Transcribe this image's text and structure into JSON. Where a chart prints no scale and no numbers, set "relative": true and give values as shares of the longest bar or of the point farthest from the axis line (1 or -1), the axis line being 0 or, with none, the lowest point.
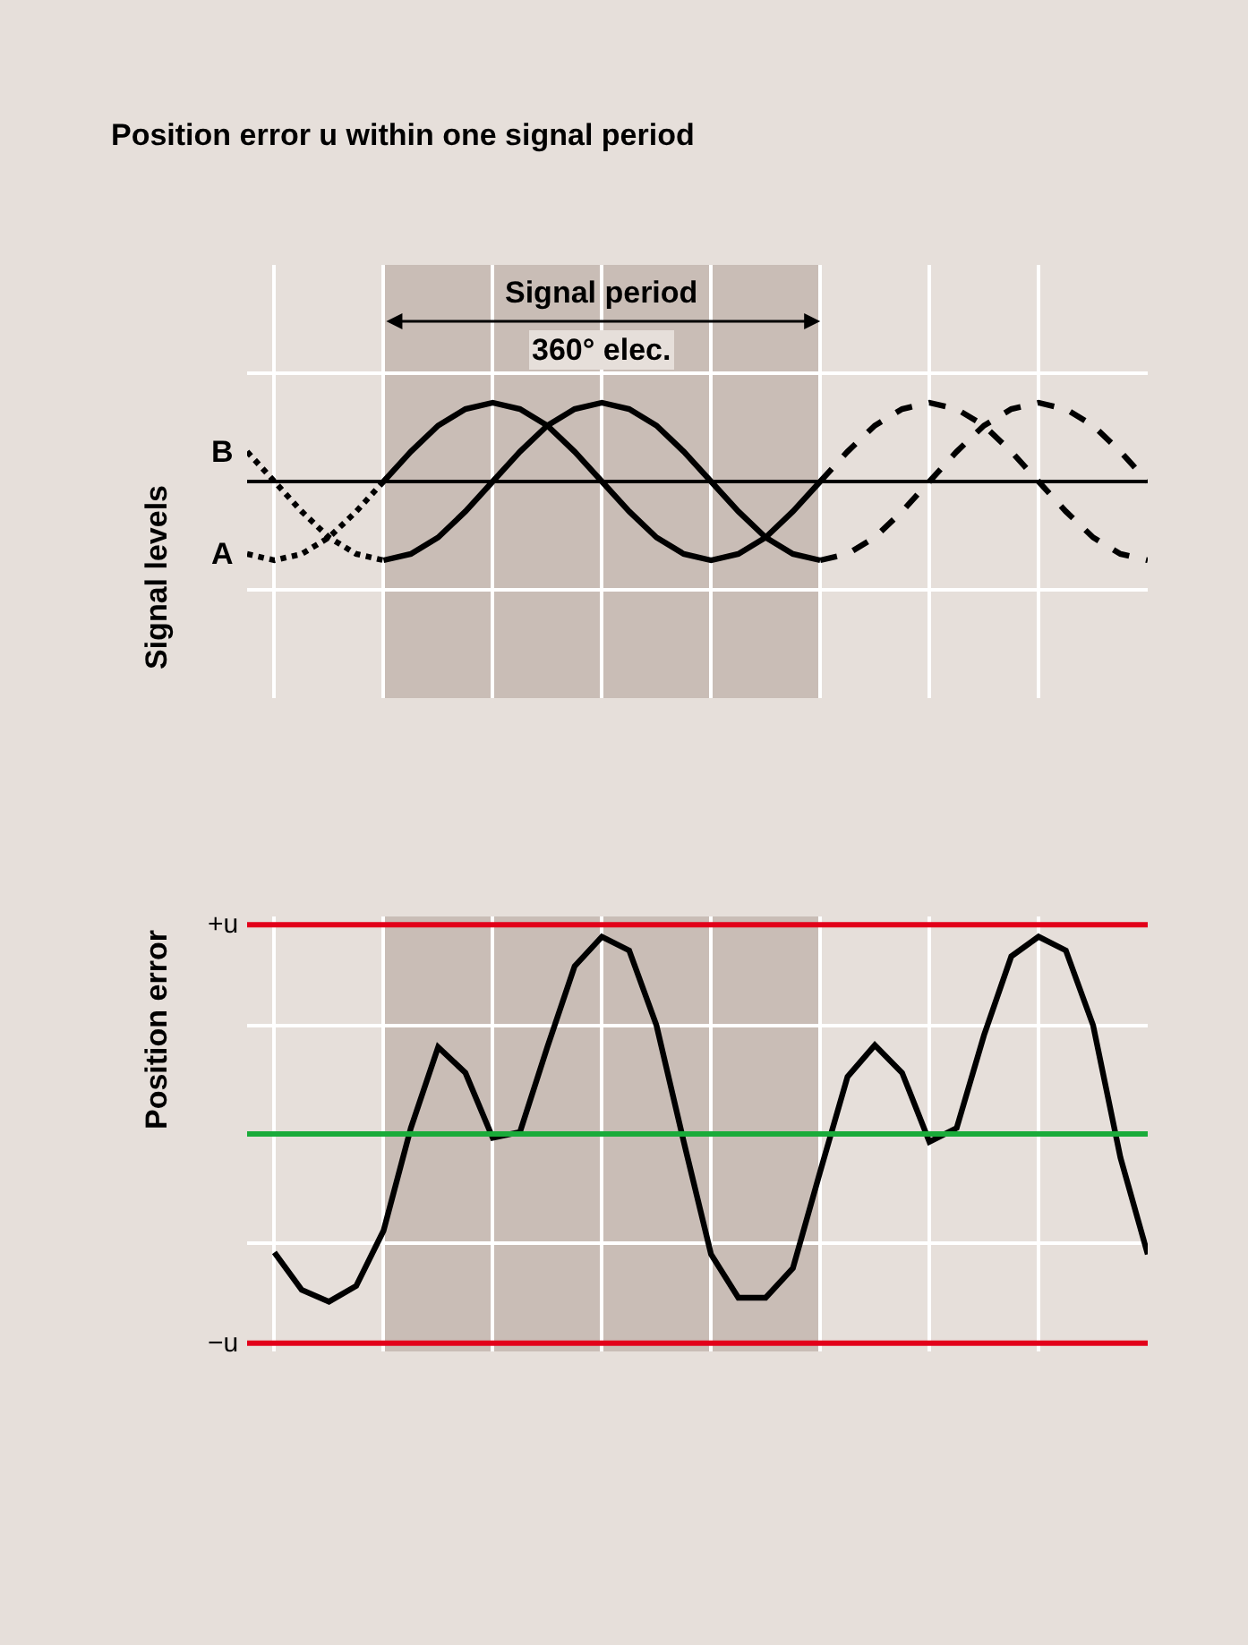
{
  "chart_data": [
    {
      "type": "line",
      "title": "Position error u within one signal period",
      "ylabel": "Signal levels",
      "annotations": [
        "Signal period\n360° elec."
      ],
      "relative": true,
      "grid": true,
      "categories": [
        null,
        null,
        null,
        null,
        null,
        null,
        null,
        null,
        null,
        null,
        null,
        null,
        null,
        null,
        null,
        null,
        null,
        null,
        null,
        null,
        null,
        null,
        null,
        null,
        null,
        null,
        null,
        null,
        null,
        null,
        null,
        null,
        null,
        null
      ],
      "series": [
        {
          "name": "A",
          "color": "#000000",
          "line_style": "dotted",
          "values": [
            -0.92,
            -1,
            -0.92,
            -0.71,
            -0.38,
            0,
            null,
            null,
            null,
            null,
            null,
            null,
            null,
            null,
            null,
            null,
            null,
            null,
            null,
            null,
            null,
            null,
            null,
            null,
            null,
            null,
            null,
            null,
            null,
            null,
            null,
            null,
            null,
            null
          ]
        },
        {
          "color": "#000000",
          "line_style": "solid",
          "values": [
            null,
            null,
            null,
            null,
            null,
            0,
            0.38,
            0.71,
            0.92,
            1,
            0.92,
            0.71,
            0.38,
            0,
            -0.38,
            -0.71,
            -0.92,
            -1,
            -0.92,
            -0.71,
            -0.38,
            0,
            null,
            null,
            null,
            null,
            null,
            null,
            null,
            null,
            null,
            null,
            null,
            null
          ]
        },
        {
          "color": "#000000",
          "line_style": "dashed",
          "values": [
            null,
            null,
            null,
            null,
            null,
            null,
            null,
            null,
            null,
            null,
            null,
            null,
            null,
            null,
            null,
            null,
            null,
            null,
            null,
            null,
            null,
            0,
            0.38,
            0.71,
            0.92,
            1,
            0.92,
            0.71,
            0.38,
            0,
            -0.38,
            -0.71,
            -0.92,
            -1
          ]
        },
        {
          "name": "B",
          "color": "#000000",
          "line_style": "dotted",
          "values": [
            0.38,
            0,
            -0.38,
            -0.71,
            -0.92,
            -1,
            null,
            null,
            null,
            null,
            null,
            null,
            null,
            null,
            null,
            null,
            null,
            null,
            null,
            null,
            null,
            null,
            null,
            null,
            null,
            null,
            null,
            null,
            null,
            null,
            null,
            null,
            null,
            null
          ]
        },
        {
          "color": "#000000",
          "line_style": "solid",
          "values": [
            null,
            null,
            null,
            null,
            null,
            -1,
            -0.92,
            -0.71,
            -0.38,
            0,
            0.38,
            0.71,
            0.92,
            1,
            0.92,
            0.71,
            0.38,
            0,
            -0.38,
            -0.71,
            -0.92,
            -1,
            null,
            null,
            null,
            null,
            null,
            null,
            null,
            null,
            null,
            null,
            null,
            null
          ]
        },
        {
          "color": "#000000",
          "line_style": "dashed",
          "values": [
            null,
            null,
            null,
            null,
            null,
            null,
            null,
            null,
            null,
            null,
            null,
            null,
            null,
            null,
            null,
            null,
            null,
            null,
            null,
            null,
            null,
            -1,
            -0.92,
            -0.71,
            -0.38,
            0,
            0.38,
            0.71,
            0.92,
            1,
            0.92,
            0.71,
            0.38,
            0
          ]
        }
      ]
    },
    {
      "type": "line",
      "ylabel": "Position error",
      "relative": true,
      "grid": true,
      "ref_lines": [
        {
          "axis": "y",
          "value": 1.06,
          "label": "+u",
          "color": "#e2001a"
        },
        {
          "axis": "y",
          "value": -1.06,
          "label": "−u",
          "color": "#e2001a"
        },
        {
          "axis": "y",
          "value": 0,
          "color": "#1aab3a"
        }
      ],
      "categories": [
        null,
        null,
        null,
        null,
        null,
        null,
        null,
        null,
        null,
        null,
        null,
        null,
        null,
        null,
        null,
        null,
        null,
        null,
        null,
        null,
        null,
        null,
        null,
        null,
        null,
        null,
        null,
        null,
        null,
        null,
        null,
        null,
        null,
        null
      ],
      "series": [
        {
          "color": "#000000",
          "line_style": "solid",
          "values": [
            null,
            -0.6,
            -0.79,
            -0.85,
            -0.77,
            -0.49,
            0.03,
            0.44,
            0.31,
            -0.02,
            0.01,
            0.44,
            0.85,
            1,
            0.93,
            0.55,
            -0.04,
            -0.61,
            -0.83,
            -0.83,
            -0.68,
            -0.19,
            0.29,
            0.45,
            0.31,
            -0.04,
            0.03,
            0.5,
            0.9,
            1,
            0.93,
            0.55,
            -0.12,
            -0.61
          ]
        }
      ]
    }
  ]
}
